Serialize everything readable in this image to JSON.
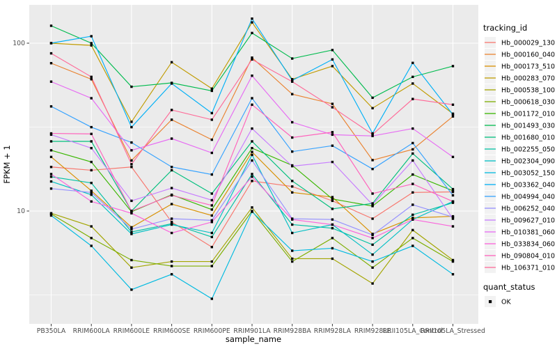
{
  "figure": {
    "panel_bg": "#EBEBEB",
    "grid_color": "#FFFFFF",
    "axis_text_color": "#4D4D4D",
    "text_color": "#000000",
    "legend_key_bg": "#F2F2F2",
    "point_color": "#000000"
  },
  "chart_data": {
    "type": "line",
    "title": "",
    "xlabel": "sample_name",
    "ylabel": "FPKM + 1",
    "y_scale": "log10",
    "ylim": [
      2.1,
      160
    ],
    "grid": true,
    "legend_position": "right",
    "legend_title": "tracking_id",
    "quant_legend_title": "quant_status",
    "quant_legend_items": [
      "OK"
    ],
    "y_major_ticks": [
      100,
      10
    ],
    "y_minor_gridlines": [
      31.6,
      3.16
    ],
    "categories": [
      "PB350LA",
      "RRIM600LA",
      "RRIM600LE",
      "RRIM600SE",
      "RRIM600PE",
      "RRIM901LA",
      "RRIM928BA",
      "RRIM928LA",
      "RRIM928LE",
      "RRII105LA_Control",
      "RRII105LA_Stressed"
    ],
    "series": [
      {
        "name": "Hb_000029_130",
        "color": "#F8766D",
        "values": [
          18.3,
          17.5,
          18.3,
          8.6,
          6.1,
          15.1,
          14,
          11.5,
          9,
          12.9,
          13
        ]
      },
      {
        "name": "Hb_000160_040",
        "color": "#EA8331",
        "values": [
          76,
          61,
          20,
          35,
          26.6,
          82,
          49.7,
          43.5,
          20.1,
          23.3,
          36.6
        ]
      },
      {
        "name": "Hb_000173_510",
        "color": "#D89000",
        "values": [
          21,
          13.2,
          8,
          11,
          9.4,
          22.5,
          12.9,
          12.1,
          7.3,
          9.1,
          9.3
        ]
      },
      {
        "name": "Hb_000283_070",
        "color": "#C09B00",
        "values": [
          100,
          97,
          34,
          77,
          53.6,
          133,
          61,
          73,
          41,
          57.5,
          38
        ]
      },
      {
        "name": "Hb_000538_100",
        "color": "#A3A500",
        "values": [
          9.7,
          8.1,
          4.6,
          5,
          5,
          10.5,
          5.2,
          5.2,
          3.7,
          7.7,
          5.1
        ]
      },
      {
        "name": "Hb_000618_030",
        "color": "#7CAE00",
        "values": [
          9.6,
          6.9,
          5.1,
          4.7,
          4.7,
          10,
          5,
          6.9,
          4.6,
          6.9,
          5
        ]
      },
      {
        "name": "Hb_001172_010",
        "color": "#39B600",
        "values": [
          23,
          19.6,
          9.9,
          12.5,
          10.2,
          23.7,
          18.7,
          11.8,
          10.7,
          16.5,
          13.2
        ]
      },
      {
        "name": "Hb_001493_030",
        "color": "#00BB4E",
        "values": [
          127,
          100,
          55,
          58,
          52,
          115,
          81,
          91,
          47.3,
          63,
          73
        ]
      },
      {
        "name": "Hb_001680_010",
        "color": "#00BF7D",
        "values": [
          26,
          26,
          10,
          17.5,
          12.7,
          26,
          15.1,
          10.3,
          11.1,
          22,
          13.5
        ]
      },
      {
        "name": "Hb_002255_050",
        "color": "#00C1A3",
        "values": [
          16,
          14.7,
          7.5,
          8.4,
          7,
          16.6,
          8.3,
          7.9,
          6.3,
          9.5,
          11.2
        ]
      },
      {
        "name": "Hb_002304_090",
        "color": "#00BFC4",
        "values": [
          15,
          12.5,
          7.3,
          8.3,
          7.4,
          21.6,
          7.4,
          8.3,
          5.5,
          8.9,
          11.4
        ]
      },
      {
        "name": "Hb_003052_150",
        "color": "#00BAE0",
        "values": [
          9.4,
          6.2,
          3.4,
          4.2,
          3,
          9.9,
          5.8,
          6,
          5,
          6.2,
          4.2
        ]
      },
      {
        "name": "Hb_003362_040",
        "color": "#00B0F6",
        "values": [
          100,
          110,
          31.6,
          57.5,
          38.3,
          140,
          60,
          80,
          29,
          76.3,
          37.5
        ]
      },
      {
        "name": "Hb_004994_040",
        "color": "#35A2FF",
        "values": [
          42,
          31.6,
          25.6,
          18.3,
          16.5,
          47,
          22.6,
          24.5,
          17.8,
          25.4,
          12.4
        ]
      },
      {
        "name": "Hb_006252_040",
        "color": "#9590FF",
        "values": [
          13.6,
          12.9,
          7.8,
          9,
          8.8,
          20,
          9,
          8.9,
          7.2,
          10.9,
          9.2
        ]
      },
      {
        "name": "Hb_009627_010",
        "color": "#C77CFF",
        "values": [
          28.5,
          23.7,
          11.5,
          13.7,
          11.6,
          31,
          18.5,
          19.6,
          10.9,
          20,
          9
        ]
      },
      {
        "name": "Hb_010381_060",
        "color": "#E76BF3",
        "values": [
          59,
          47,
          23,
          27,
          22.2,
          64,
          33.8,
          28.5,
          28,
          31,
          21
        ]
      },
      {
        "name": "Hb_033834_060",
        "color": "#FA62DB",
        "values": [
          16.6,
          11.4,
          9.7,
          7.4,
          8.6,
          16,
          8.9,
          8.3,
          6.9,
          8.9,
          8.1
        ]
      },
      {
        "name": "Hb_090804_010",
        "color": "#FF62BC",
        "values": [
          29,
          28.8,
          10,
          12.4,
          10.8,
          43,
          27.4,
          29.5,
          12.7,
          14.5,
          11.4
        ]
      },
      {
        "name": "Hb_106371_010",
        "color": "#FF6A98",
        "values": [
          87,
          63,
          19,
          40,
          35,
          80,
          59,
          41.5,
          28.6,
          46.5,
          43
        ]
      }
    ]
  }
}
